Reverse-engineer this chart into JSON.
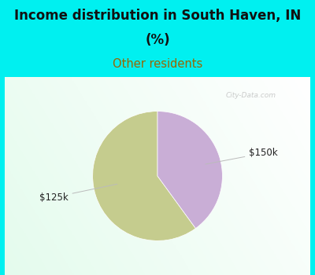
{
  "title_line1": "Income distribution in South Haven, IN",
  "title_line2": "(%)",
  "subtitle": "Other residents",
  "slices": [
    {
      "label": "$125k",
      "value": 60,
      "color": "#c5cc8e"
    },
    {
      "label": "$150k",
      "value": 40,
      "color": "#c9aed6"
    }
  ],
  "title_color": "#111111",
  "subtitle_color": "#996600",
  "background_color": "#00f0f0",
  "label_color": "#222222",
  "startangle": 90,
  "figsize": [
    4.0,
    3.5
  ],
  "dpi": 100,
  "watermark": "City-Data.com",
  "watermark_color": "#aaaaaa"
}
